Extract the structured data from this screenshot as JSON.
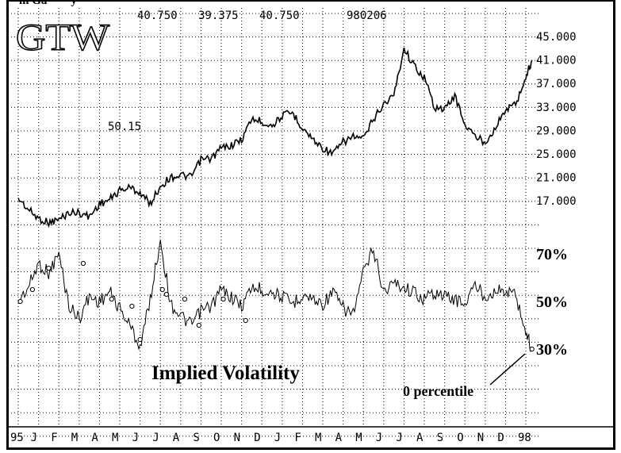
{
  "header": {
    "title_clipped": "m Ga        y",
    "ticker": "GTW",
    "stats": [
      "40.750",
      "39.375",
      "40.750",
      "980206"
    ]
  },
  "chart_data": [
    {
      "type": "line",
      "name": "price",
      "title": "GTW",
      "y_ticks": [
        "45.000",
        "41.000",
        "37.000",
        "33.000",
        "29.000",
        "25.000",
        "21.000",
        "17.000"
      ],
      "ylim": [
        13,
        47
      ],
      "x_ticks": [
        "95",
        "J",
        "F",
        "M",
        "A",
        "M",
        "J",
        "J",
        "A",
        "S",
        "O",
        "N",
        "D",
        "J",
        "F",
        "M",
        "A",
        "M",
        "J",
        "J",
        "A",
        "S",
        "O",
        "N",
        "D",
        "98"
      ],
      "series": [
        {
          "name": "GTW close",
          "x": [
            0,
            0.5,
            1,
            1.5,
            2,
            2.5,
            3,
            3.5,
            4,
            4.5,
            5,
            5.5,
            6,
            6.5,
            7,
            7.5,
            8,
            8.5,
            9,
            9.5,
            10,
            10.5,
            11,
            11.5,
            12,
            12.5,
            13,
            13.5,
            14,
            14.5,
            15,
            15.5,
            16,
            16.5,
            17,
            17.5,
            18,
            18.5,
            19,
            19.5,
            20,
            20.5,
            21,
            21.5,
            22,
            22.5,
            23,
            23.5,
            24,
            24.5,
            25,
            25.3
          ],
          "values": [
            17.5,
            15.5,
            14.0,
            13.3,
            13.8,
            15.0,
            15.0,
            14.3,
            16.5,
            17.2,
            18.8,
            19.3,
            18.4,
            16.5,
            19.5,
            21.0,
            21.4,
            21.0,
            24.0,
            24.2,
            26.0,
            26.5,
            27.4,
            31.0,
            30.5,
            29.8,
            31.5,
            32.0,
            29.5,
            27.5,
            26.0,
            25.0,
            27.0,
            28.0,
            27.5,
            31.0,
            33.5,
            35.0,
            43.0,
            40.0,
            38.0,
            33.0,
            32.5,
            35.0,
            30.0,
            28.0,
            27.0,
            29.5,
            32.5,
            33.5,
            38.0,
            41.0
          ]
        }
      ]
    },
    {
      "type": "line",
      "name": "implied-volatility",
      "title": "Implied Volatility",
      "y_ticks": [
        "70%",
        "50%",
        "30%"
      ],
      "ylim": [
        20,
        80
      ],
      "annotation": "0 percentile",
      "value_label": "50.15",
      "series": [
        {
          "name": "implied volatility",
          "x": [
            0,
            0.5,
            1,
            1.5,
            2,
            2.5,
            3,
            3.5,
            4,
            4.5,
            5,
            5.5,
            6,
            6.5,
            7,
            7.5,
            8,
            8.5,
            9,
            9.5,
            10,
            10.5,
            11,
            11.5,
            12,
            12.5,
            13,
            13.5,
            14,
            14.5,
            15,
            15.5,
            16,
            16.5,
            17,
            17.5,
            18,
            18.5,
            19,
            19.5,
            20,
            20.5,
            21,
            21.5,
            22,
            22.5,
            23,
            23.5,
            24,
            24.5,
            25,
            25.3
          ],
          "values": [
            50,
            56,
            66,
            62,
            70,
            48,
            43,
            52,
            50,
            54,
            47,
            40,
            31,
            51,
            76,
            49,
            44,
            40,
            46,
            48,
            55,
            52,
            48,
            56,
            55,
            54,
            52,
            49,
            53,
            51,
            49,
            54,
            47,
            45,
            62,
            72,
            54,
            58,
            56,
            54,
            51,
            54,
            52,
            51,
            49,
            57,
            52,
            55,
            54,
            53,
            37,
            30
          ]
        }
      ],
      "markers": [
        {
          "x": 0.1,
          "value": 50
        },
        {
          "x": 0.7,
          "value": 55
        },
        {
          "x": 1.5,
          "value": 64
        },
        {
          "x": 3.2,
          "value": 66
        },
        {
          "x": 4.6,
          "value": 51
        },
        {
          "x": 5.6,
          "value": 48
        },
        {
          "x": 6.0,
          "value": 34
        },
        {
          "x": 7.1,
          "value": 55
        },
        {
          "x": 7.3,
          "value": 53
        },
        {
          "x": 8.2,
          "value": 51
        },
        {
          "x": 8.9,
          "value": 40
        },
        {
          "x": 10.1,
          "value": 51
        },
        {
          "x": 11.2,
          "value": 42
        },
        {
          "x": 25.3,
          "value": 30
        }
      ]
    }
  ]
}
